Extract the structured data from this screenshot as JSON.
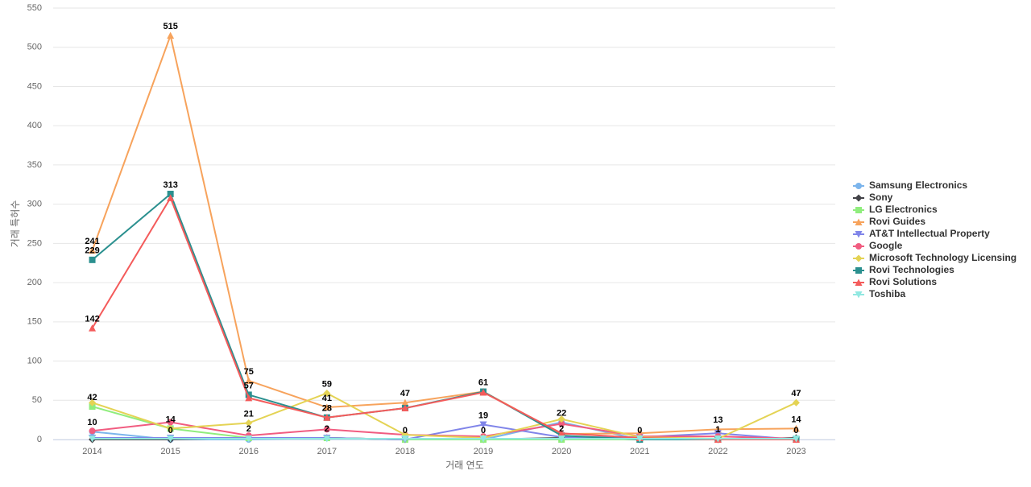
{
  "chart_data": {
    "type": "line",
    "x_label": "거래 연도",
    "y_label": "거래 특허수",
    "categories": [
      "2014",
      "2015",
      "2016",
      "2017",
      "2018",
      "2019",
      "2020",
      "2021",
      "2022",
      "2023"
    ],
    "ylim": [
      0,
      550
    ],
    "yticks": [
      0,
      50,
      100,
      150,
      200,
      250,
      300,
      350,
      400,
      450,
      500,
      550
    ],
    "grid": true,
    "legend": "right",
    "series": [
      {
        "name": "Samsung Electronics",
        "color": "#7cb5ec",
        "marker": "circle",
        "values": [
          10,
          0,
          0,
          2,
          0,
          0,
          22,
          0,
          0,
          0
        ],
        "value_labels": [
          "10",
          "0",
          null,
          null,
          "0",
          null,
          "22",
          "0",
          null,
          "0"
        ]
      },
      {
        "name": "Sony",
        "color": "#434348",
        "marker": "diamond",
        "values": [
          0,
          0,
          2,
          2,
          0,
          0,
          2,
          0,
          0,
          2
        ],
        "value_labels": [
          null,
          null,
          null,
          null,
          null,
          null,
          "2",
          null,
          null,
          null
        ]
      },
      {
        "name": "LG Electronics",
        "color": "#90ed7d",
        "marker": "square",
        "values": [
          42,
          14,
          2,
          2,
          0,
          0,
          0,
          0,
          0,
          0
        ],
        "value_labels": [
          "42",
          "14",
          "2",
          "2",
          null,
          "0",
          null,
          null,
          null,
          null
        ]
      },
      {
        "name": "Rovi Guides",
        "color": "#f7a35c",
        "marker": "triangle",
        "values": [
          241,
          515,
          75,
          41,
          47,
          61,
          7,
          8,
          13,
          14
        ],
        "value_labels": [
          "241",
          "515",
          "75",
          "41",
          "47",
          "61",
          null,
          null,
          "13",
          "14"
        ]
      },
      {
        "name": "AT&T Intellectual Property",
        "color": "#8085e9",
        "marker": "triangle-down",
        "values": [
          2,
          2,
          2,
          2,
          0,
          19,
          3,
          3,
          8,
          0
        ],
        "value_labels": [
          null,
          null,
          null,
          null,
          null,
          "19",
          null,
          null,
          null,
          null
        ]
      },
      {
        "name": "Google",
        "color": "#f15c80",
        "marker": "circle",
        "values": [
          11,
          22,
          5,
          13,
          6,
          4,
          20,
          4,
          4,
          1
        ],
        "value_labels": [
          null,
          null,
          null,
          null,
          null,
          null,
          null,
          null,
          null,
          null
        ]
      },
      {
        "name": "Microsoft Technology Licensing",
        "color": "#e4d354",
        "marker": "diamond",
        "values": [
          47,
          14,
          21,
          59,
          6,
          2,
          26,
          3,
          1,
          47
        ],
        "value_labels": [
          null,
          null,
          "21",
          "59",
          null,
          null,
          null,
          null,
          "1",
          "47"
        ]
      },
      {
        "name": "Rovi Technologies",
        "color": "#2b908f",
        "marker": "square",
        "values": [
          229,
          313,
          57,
          28,
          40,
          61,
          5,
          0,
          0,
          0
        ],
        "value_labels": [
          "229",
          "313",
          "57",
          "28",
          null,
          null,
          null,
          null,
          null,
          null
        ]
      },
      {
        "name": "Rovi Solutions",
        "color": "#f45b5b",
        "marker": "triangle",
        "values": [
          142,
          308,
          53,
          28,
          40,
          60,
          8,
          2,
          0,
          0
        ],
        "value_labels": [
          "142",
          null,
          null,
          null,
          null,
          null,
          null,
          null,
          null,
          null
        ]
      },
      {
        "name": "Toshiba",
        "color": "#91e8e1",
        "marker": "triangle-down",
        "values": [
          1,
          1,
          1,
          1,
          1,
          1,
          1,
          1,
          1,
          1
        ],
        "value_labels": [
          null,
          null,
          null,
          null,
          null,
          null,
          null,
          null,
          null,
          null
        ]
      }
    ]
  }
}
